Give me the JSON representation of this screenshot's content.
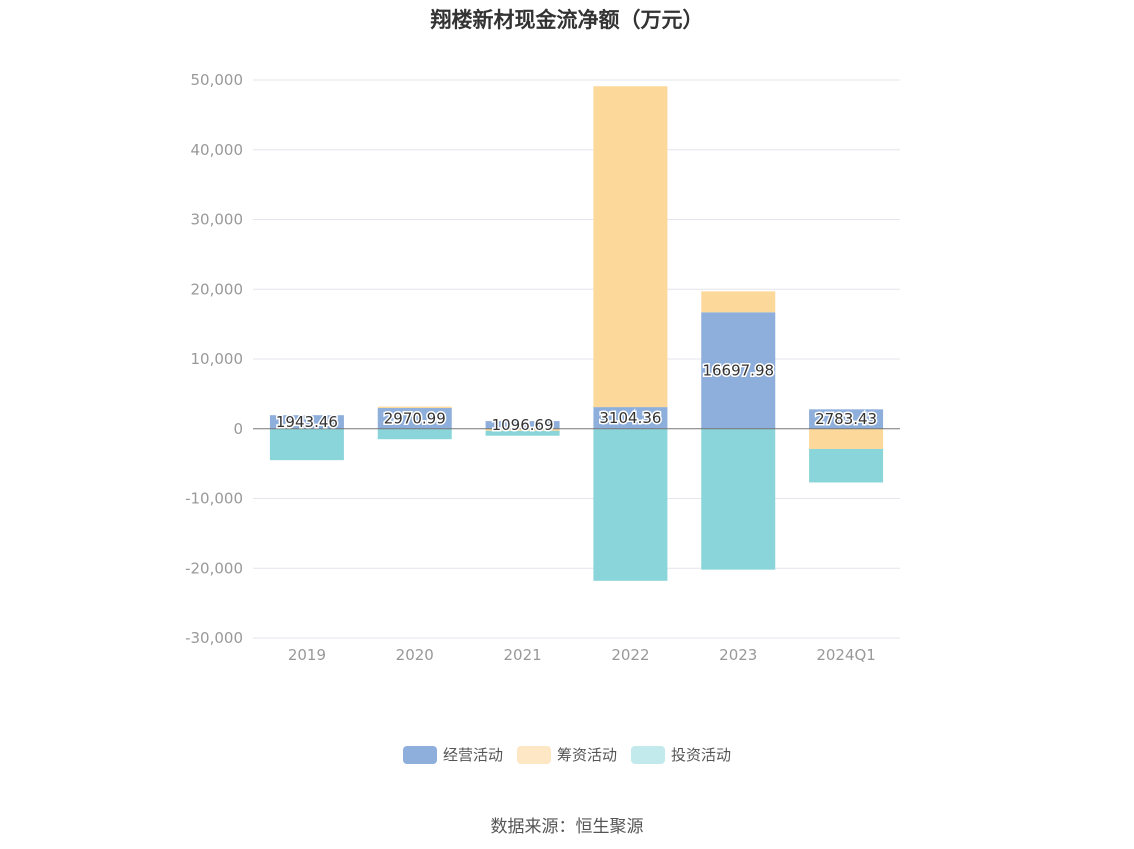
{
  "chart_data": {
    "type": "bar",
    "stacked": true,
    "title": "翔楼新材现金流净额（万元）",
    "categories": [
      "2019",
      "2020",
      "2021",
      "2022",
      "2023",
      "2024Q1"
    ],
    "series": [
      {
        "name": "经营活动",
        "color": "#8eaedb",
        "values": [
          1943.46,
          2970.99,
          1096.69,
          3104.36,
          16697.98,
          2783.43
        ]
      },
      {
        "name": "筹资活动",
        "color": "#fdd89b",
        "values": [
          0,
          200,
          -300,
          46000,
          3000,
          -2900
        ]
      },
      {
        "name": "投资活动",
        "color": "#89d5da",
        "values": [
          -4500,
          -1500,
          -700,
          -21800,
          -20200,
          -4800
        ]
      }
    ],
    "ylim": [
      -30000,
      50000
    ],
    "yticks": [
      -30000,
      -20000,
      -10000,
      0,
      10000,
      20000,
      30000,
      40000,
      50000
    ],
    "ytick_labels": [
      "-30,000",
      "-20,000",
      "-10,000",
      "0",
      "10,000",
      "20,000",
      "30,000",
      "40,000",
      "50,000"
    ],
    "data_labels": [
      "1943.46",
      "2970.99",
      "1096.69",
      "3104.36",
      "16697.98",
      "2783.43"
    ],
    "grid": true,
    "legend_position": "bottom"
  },
  "legend": {
    "items": [
      {
        "label": "经营活动",
        "color": "#8eaedb"
      },
      {
        "label": "筹资活动",
        "color": "#fde7c4"
      },
      {
        "label": "投资活动",
        "color": "#c2e9ec"
      }
    ]
  },
  "source": "数据来源：恒生聚源"
}
